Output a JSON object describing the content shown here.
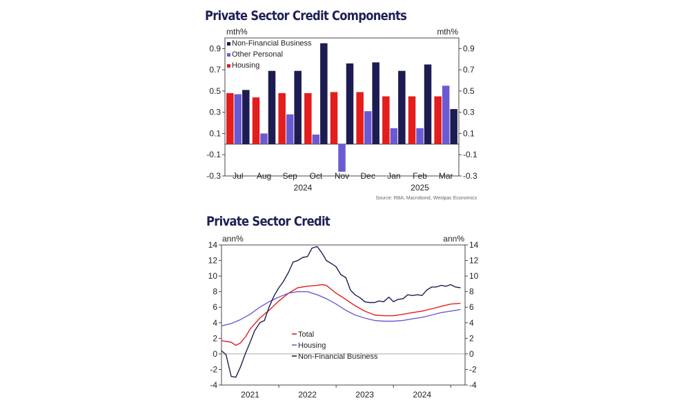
{
  "chart_data": [
    {
      "type": "bar",
      "title": "Private Sector Credit Components",
      "ylabel_left": "mth%",
      "ylabel_right": "mth%",
      "ylim": [
        -0.3,
        1.0
      ],
      "yticks": [
        0.9,
        0.7,
        0.5,
        0.3,
        0.1,
        -0.1,
        -0.3
      ],
      "categories": [
        "Jul",
        "Aug",
        "Sep",
        "Oct",
        "Nov",
        "Dec",
        "Jan",
        "Feb",
        "Mar"
      ],
      "year_labels": [
        {
          "label": "2024",
          "center_category": 2.5
        },
        {
          "label": "2025",
          "center_category": 7.0
        }
      ],
      "legend_position": "top-left",
      "series": [
        {
          "name": "Housing",
          "color": "#e41d1d",
          "values": [
            0.48,
            0.44,
            0.48,
            0.48,
            0.49,
            0.49,
            0.45,
            0.45,
            0.45
          ]
        },
        {
          "name": "Other Personal",
          "color": "#6b5bd2",
          "values": [
            0.47,
            0.1,
            0.28,
            0.09,
            -0.26,
            0.31,
            0.15,
            0.15,
            0.55
          ]
        },
        {
          "name": "Non-Financial Business",
          "color": "#1c1c52",
          "values": [
            0.51,
            0.69,
            0.69,
            0.95,
            0.76,
            0.77,
            0.69,
            0.75,
            0.33
          ]
        }
      ],
      "legend_order": [
        "Non-Financial Business",
        "Other Personal",
        "Housing"
      ],
      "source": "Source: RBA, Macrobond, Westpac Economics"
    },
    {
      "type": "line",
      "title": "Private Sector Credit",
      "ylabel_left": "ann%",
      "ylabel_right": "ann%",
      "ylim": [
        -4,
        14
      ],
      "yticks": [
        14,
        12,
        10,
        8,
        6,
        4,
        2,
        0,
        -2,
        -4
      ],
      "xlim": [
        2020.5,
        2024.75
      ],
      "xticks": [
        {
          "label": "2021",
          "center": 2021.0
        },
        {
          "label": "2022",
          "center": 2022.0
        },
        {
          "label": "2023",
          "center": 2023.0
        },
        {
          "label": "2024",
          "center": 2024.0
        }
      ],
      "zero_line": true,
      "legend_position": "bottom-center",
      "series": [
        {
          "name": "Total",
          "color": "#e41d1d",
          "x": [
            2020.5,
            2020.58,
            2020.67,
            2020.75,
            2020.83,
            2020.92,
            2021.0,
            2021.17,
            2021.33,
            2021.5,
            2021.67,
            2021.83,
            2022.0,
            2022.17,
            2022.25,
            2022.33,
            2022.5,
            2022.67,
            2022.83,
            2023.0,
            2023.17,
            2023.33,
            2023.5,
            2023.67,
            2023.83,
            2024.0,
            2024.17,
            2024.33,
            2024.5,
            2024.67
          ],
          "values": [
            1.7,
            1.6,
            1.5,
            1.1,
            1.4,
            2.2,
            3.2,
            4.6,
            5.6,
            6.8,
            7.8,
            8.5,
            8.7,
            8.8,
            8.9,
            8.8,
            7.8,
            7.0,
            6.2,
            5.5,
            5.0,
            4.9,
            4.9,
            5.1,
            5.3,
            5.5,
            5.8,
            6.1,
            6.4,
            6.5
          ]
        },
        {
          "name": "Housing",
          "color": "#6b5bd2",
          "x": [
            2020.5,
            2020.67,
            2020.83,
            2021.0,
            2021.17,
            2021.33,
            2021.5,
            2021.67,
            2021.83,
            2022.0,
            2022.17,
            2022.33,
            2022.5,
            2022.67,
            2022.83,
            2023.0,
            2023.17,
            2023.33,
            2023.5,
            2023.67,
            2023.83,
            2024.0,
            2024.17,
            2024.33,
            2024.5,
            2024.67
          ],
          "values": [
            3.6,
            3.9,
            4.4,
            5.1,
            6.0,
            6.7,
            7.3,
            7.8,
            8.0,
            8.0,
            7.6,
            7.1,
            6.4,
            5.6,
            5.0,
            4.6,
            4.3,
            4.2,
            4.2,
            4.3,
            4.5,
            4.7,
            5.0,
            5.3,
            5.5,
            5.7
          ]
        },
        {
          "name": "Non-Financial Business",
          "color": "#1c1c52",
          "x": [
            2020.5,
            2020.58,
            2020.67,
            2020.75,
            2020.83,
            2020.92,
            2021.0,
            2021.08,
            2021.17,
            2021.25,
            2021.33,
            2021.42,
            2021.5,
            2021.58,
            2021.67,
            2021.75,
            2021.83,
            2021.92,
            2022.0,
            2022.08,
            2022.17,
            2022.25,
            2022.33,
            2022.42,
            2022.5,
            2022.58,
            2022.67,
            2022.75,
            2022.83,
            2022.92,
            2023.0,
            2023.08,
            2023.17,
            2023.25,
            2023.33,
            2023.42,
            2023.5,
            2023.58,
            2023.67,
            2023.75,
            2023.83,
            2023.92,
            2024.0,
            2024.08,
            2024.17,
            2024.25,
            2024.33,
            2024.42,
            2024.5,
            2024.58,
            2024.67
          ],
          "values": [
            0.4,
            -0.1,
            -2.9,
            -3.0,
            -1.7,
            0.1,
            1.5,
            3.0,
            4.0,
            4.3,
            6.0,
            7.5,
            8.5,
            9.3,
            10.5,
            11.8,
            12.0,
            12.4,
            12.5,
            13.6,
            13.8,
            13.0,
            12.0,
            11.6,
            11.2,
            10.2,
            9.8,
            8.2,
            7.6,
            7.2,
            6.7,
            6.6,
            6.6,
            6.8,
            6.7,
            7.3,
            6.7,
            7.0,
            7.1,
            7.6,
            7.5,
            7.6,
            7.5,
            8.2,
            8.6,
            8.6,
            8.8,
            8.7,
            8.9,
            8.6,
            8.5
          ]
        }
      ],
      "legend_order": [
        "Total",
        "Housing",
        "Non-Financial Business"
      ]
    }
  ]
}
